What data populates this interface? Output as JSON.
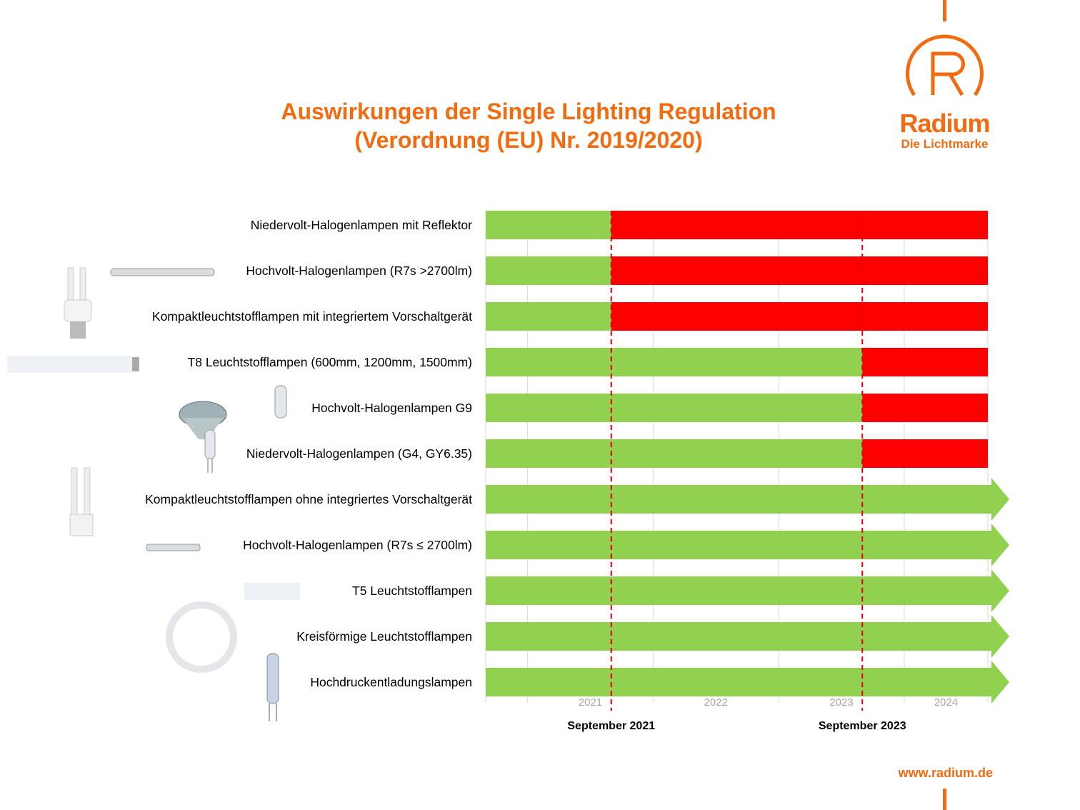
{
  "title_line1": "Auswirkungen der Single Lighting Regulation",
  "title_line2": "(Verordnung (EU) Nr. 2019/2020)",
  "logo": {
    "mark": "R",
    "name": "Radium",
    "tagline": "Die Lichtmarke"
  },
  "url": "www.radium.de",
  "chart_data": {
    "type": "bar",
    "subtype": "timeline-gantt",
    "xlim": [
      "2020-09",
      "2024-09"
    ],
    "x_tick_labels": [
      "2021",
      "2022",
      "2023",
      "2024"
    ],
    "markers": [
      {
        "date": "2021-09",
        "label": "September 2021"
      },
      {
        "date": "2023-09",
        "label": "September 2023"
      }
    ],
    "colors": {
      "allowed": "#92d050",
      "banned": "#ff0000",
      "marker": "#e00000",
      "tick": "#a6a6a6"
    },
    "grid": true,
    "categories": [
      "Niedervolt-Halogenlampen mit Reflektor",
      "Hochvolt-Halogenlampen (R7s >2700lm)",
      "Kompaktleuchtstofflampen mit integriertem Vorschaltgerät",
      "T8 Leuchtstofflampen (600mm, 1200mm, 1500mm)",
      "Hochvolt-Halogenlampen G9",
      "Niedervolt-Halogenlampen (G4, GY6.35)",
      "Kompaktleuchtstofflampen ohne integriertes Vorschaltgerät",
      "Hochvolt-Halogenlampen (R7s ≤ 2700lm)",
      "T5 Leuchtstofflampen",
      "Kreisförmige Leuchtstofflampen",
      "Hochdruckentladungslampen"
    ],
    "ban_dates": [
      "2021-09",
      "2021-09",
      "2021-09",
      "2023-09",
      "2023-09",
      "2023-09",
      null,
      null,
      null,
      null,
      null
    ]
  }
}
